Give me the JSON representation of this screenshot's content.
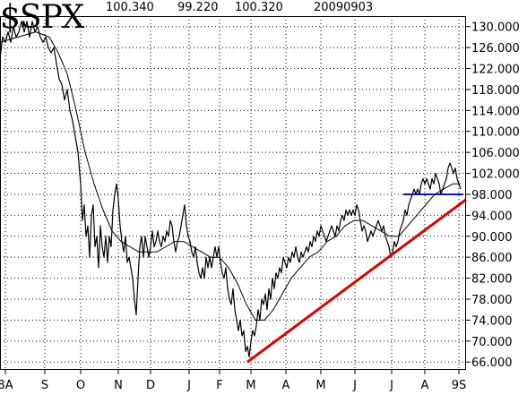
{
  "header": {
    "symbol": "$SPX",
    "v1": "100.340",
    "v2": "99.220",
    "v3": "100.320",
    "date": "20090903"
  },
  "chart_data": {
    "type": "line",
    "title": "$SPX",
    "series": [
      {
        "name": "",
        "color": "#000000",
        "values": [
          [
            0,
            124
          ],
          [
            3,
            128
          ],
          [
            6,
            127
          ],
          [
            9,
            129
          ],
          [
            12,
            127
          ],
          [
            15,
            130
          ],
          [
            18,
            128
          ],
          [
            21,
            129
          ],
          [
            24,
            131
          ],
          [
            27,
            129
          ],
          [
            30,
            131
          ],
          [
            33,
            128
          ],
          [
            36,
            131
          ],
          [
            39,
            129
          ],
          [
            42,
            130
          ],
          [
            45,
            128
          ],
          [
            48,
            127
          ],
          [
            51,
            128
          ],
          [
            54,
            126
          ],
          [
            57,
            125
          ],
          [
            60,
            126
          ],
          [
            63,
            123
          ],
          [
            66,
            120
          ],
          [
            69,
            119
          ],
          [
            72,
            116
          ],
          [
            75,
            118
          ],
          [
            78,
            114
          ],
          [
            81,
            112
          ],
          [
            84,
            109
          ],
          [
            87,
            106
          ],
          [
            90,
            100
          ],
          [
            92,
            93
          ],
          [
            94,
            96
          ],
          [
            96,
            90
          ],
          [
            98,
            92
          ],
          [
            100,
            86
          ],
          [
            102,
            94
          ],
          [
            104,
            96
          ],
          [
            106,
            88
          ],
          [
            108,
            90
          ],
          [
            110,
            84
          ],
          [
            112,
            92
          ],
          [
            114,
            88
          ],
          [
            116,
            86
          ],
          [
            118,
            90
          ],
          [
            120,
            85
          ],
          [
            122,
            90
          ],
          [
            124,
            88
          ],
          [
            126,
            95
          ],
          [
            128,
            98
          ],
          [
            130,
            100
          ],
          [
            132,
            97
          ],
          [
            134,
            92
          ],
          [
            136,
            89
          ],
          [
            138,
            87
          ],
          [
            140,
            90
          ],
          [
            142,
            85
          ],
          [
            144,
            86
          ],
          [
            146,
            84
          ],
          [
            148,
            82
          ],
          [
            150,
            78
          ],
          [
            152,
            75
          ],
          [
            154,
            82
          ],
          [
            156,
            88
          ],
          [
            158,
            90
          ],
          [
            160,
            86
          ],
          [
            162,
            90
          ],
          [
            164,
            88
          ],
          [
            166,
            86
          ],
          [
            168,
            88
          ],
          [
            170,
            91
          ],
          [
            172,
            88
          ],
          [
            174,
            89
          ],
          [
            176,
            91
          ],
          [
            178,
            89
          ],
          [
            180,
            88
          ],
          [
            182,
            90
          ],
          [
            184,
            89
          ],
          [
            186,
            91
          ],
          [
            188,
            90
          ],
          [
            190,
            93
          ],
          [
            192,
            92
          ],
          [
            194,
            89
          ],
          [
            196,
            87
          ],
          [
            198,
            89
          ],
          [
            200,
            90
          ],
          [
            202,
            92
          ],
          [
            204,
            94
          ],
          [
            206,
            96
          ],
          [
            208,
            92
          ],
          [
            210,
            90
          ],
          [
            212,
            89
          ],
          [
            214,
            87
          ],
          [
            216,
            86
          ],
          [
            218,
            88
          ],
          [
            220,
            85
          ],
          [
            222,
            83
          ],
          [
            224,
            82
          ],
          [
            226,
            84
          ],
          [
            228,
            82
          ],
          [
            230,
            86
          ],
          [
            232,
            84
          ],
          [
            234,
            86
          ],
          [
            236,
            84
          ],
          [
            238,
            86
          ],
          [
            240,
            88
          ],
          [
            242,
            86
          ],
          [
            244,
            88
          ],
          [
            246,
            85
          ],
          [
            248,
            83
          ],
          [
            250,
            82
          ],
          [
            252,
            84
          ],
          [
            254,
            80
          ],
          [
            256,
            78
          ],
          [
            258,
            77
          ],
          [
            260,
            80
          ],
          [
            262,
            76
          ],
          [
            264,
            74
          ],
          [
            266,
            72
          ],
          [
            268,
            74
          ],
          [
            270,
            71
          ],
          [
            272,
            72
          ],
          [
            274,
            68
          ],
          [
            276,
            69
          ],
          [
            278,
            67
          ],
          [
            280,
            70
          ],
          [
            282,
            72
          ],
          [
            284,
            71
          ],
          [
            286,
            73
          ],
          [
            288,
            76
          ],
          [
            290,
            74
          ],
          [
            292,
            78
          ],
          [
            294,
            77
          ],
          [
            296,
            79
          ],
          [
            298,
            76
          ],
          [
            300,
            80
          ],
          [
            302,
            78
          ],
          [
            304,
            82
          ],
          [
            306,
            80
          ],
          [
            308,
            83
          ],
          [
            310,
            82
          ],
          [
            312,
            84
          ],
          [
            314,
            83
          ],
          [
            316,
            86
          ],
          [
            318,
            85
          ],
          [
            320,
            84
          ],
          [
            322,
            86
          ],
          [
            324,
            85
          ],
          [
            326,
            87
          ],
          [
            328,
            86
          ],
          [
            330,
            88
          ],
          [
            332,
            86
          ],
          [
            334,
            85
          ],
          [
            336,
            87
          ],
          [
            338,
            86
          ],
          [
            340,
            87
          ],
          [
            342,
            88
          ],
          [
            344,
            87
          ],
          [
            346,
            89
          ],
          [
            348,
            88
          ],
          [
            350,
            90
          ],
          [
            352,
            89
          ],
          [
            354,
            91
          ],
          [
            356,
            90
          ],
          [
            358,
            92
          ],
          [
            360,
            91
          ],
          [
            362,
            90
          ],
          [
            364,
            89
          ],
          [
            366,
            90
          ],
          [
            368,
            91
          ],
          [
            370,
            92
          ],
          [
            372,
            91
          ],
          [
            374,
            90
          ],
          [
            376,
            92
          ],
          [
            378,
            91
          ],
          [
            380,
            93
          ],
          [
            382,
            94
          ],
          [
            384,
            93
          ],
          [
            386,
            95
          ],
          [
            388,
            94
          ],
          [
            390,
            95
          ],
          [
            392,
            94
          ],
          [
            394,
            95
          ],
          [
            396,
            94
          ],
          [
            398,
            96
          ],
          [
            400,
            95
          ],
          [
            402,
            93
          ],
          [
            404,
            91
          ],
          [
            406,
            92
          ],
          [
            408,
            91
          ],
          [
            410,
            89
          ],
          [
            412,
            90
          ],
          [
            414,
            91
          ],
          [
            416,
            90
          ],
          [
            418,
            91
          ],
          [
            420,
            92
          ],
          [
            422,
            93
          ],
          [
            424,
            92
          ],
          [
            426,
            91
          ],
          [
            428,
            92
          ],
          [
            430,
            90
          ],
          [
            432,
            89
          ],
          [
            434,
            88
          ],
          [
            436,
            86
          ],
          [
            438,
            87
          ],
          [
            440,
            89
          ],
          [
            442,
            88
          ],
          [
            444,
            89
          ],
          [
            446,
            91
          ],
          [
            448,
            92
          ],
          [
            450,
            93
          ],
          [
            452,
            95
          ],
          [
            454,
            94
          ],
          [
            456,
            96
          ],
          [
            458,
            97
          ],
          [
            460,
            98
          ],
          [
            462,
            99
          ],
          [
            464,
            98
          ],
          [
            466,
            99
          ],
          [
            468,
            98
          ],
          [
            470,
            100
          ],
          [
            472,
            101
          ],
          [
            474,
            100
          ],
          [
            476,
            101
          ],
          [
            478,
            100
          ],
          [
            480,
            99
          ],
          [
            482,
            101
          ],
          [
            484,
            100
          ],
          [
            486,
            102
          ],
          [
            488,
            101
          ],
          [
            490,
            100
          ],
          [
            492,
            98
          ],
          [
            494,
            99
          ],
          [
            496,
            100
          ],
          [
            498,
            101
          ],
          [
            500,
            103
          ],
          [
            502,
            104
          ],
          [
            504,
            103
          ],
          [
            506,
            102
          ],
          [
            508,
            103
          ],
          [
            510,
            101
          ],
          [
            512,
            100
          ],
          [
            514,
            99
          ]
        ]
      },
      {
        "name": "",
        "color": "#000000",
        "values": [
          [
            0,
            127
          ],
          [
            20,
            128
          ],
          [
            40,
            129
          ],
          [
            55,
            128
          ],
          [
            65,
            125
          ],
          [
            75,
            121
          ],
          [
            85,
            114
          ],
          [
            95,
            106
          ],
          [
            105,
            100
          ],
          [
            115,
            95
          ],
          [
            125,
            91
          ],
          [
            135,
            89
          ],
          [
            145,
            88
          ],
          [
            155,
            87
          ],
          [
            165,
            87
          ],
          [
            175,
            87
          ],
          [
            185,
            88
          ],
          [
            195,
            89
          ],
          [
            205,
            89
          ],
          [
            215,
            88
          ],
          [
            225,
            87
          ],
          [
            235,
            86
          ],
          [
            245,
            86
          ],
          [
            255,
            84
          ],
          [
            265,
            81
          ],
          [
            275,
            77
          ],
          [
            285,
            74
          ],
          [
            295,
            74
          ],
          [
            305,
            76
          ],
          [
            315,
            79
          ],
          [
            325,
            82
          ],
          [
            335,
            84
          ],
          [
            345,
            86
          ],
          [
            355,
            87
          ],
          [
            365,
            89
          ],
          [
            375,
            90
          ],
          [
            385,
            92
          ],
          [
            395,
            93
          ],
          [
            405,
            93
          ],
          [
            415,
            92
          ],
          [
            425,
            91
          ],
          [
            435,
            90
          ],
          [
            445,
            90
          ],
          [
            455,
            92
          ],
          [
            465,
            94
          ],
          [
            475,
            96
          ],
          [
            485,
            98
          ],
          [
            495,
            99
          ],
          [
            505,
            100
          ],
          [
            514,
            100
          ]
        ]
      }
    ],
    "trendlines": [
      {
        "name": "support",
        "color": "#e00000",
        "from": [
          276,
          66
        ],
        "to": [
          520,
          97
        ]
      },
      {
        "name": "resistance",
        "color": "#1010d0",
        "from": [
          450,
          98
        ],
        "to": [
          517,
          98
        ]
      }
    ],
    "x_ticks": [
      {
        "x": 6,
        "label": "8A"
      },
      {
        "x": 50,
        "label": "S"
      },
      {
        "x": 90,
        "label": "O"
      },
      {
        "x": 132,
        "label": "N"
      },
      {
        "x": 168,
        "label": "D"
      },
      {
        "x": 211,
        "label": "J"
      },
      {
        "x": 245,
        "label": "F"
      },
      {
        "x": 280,
        "label": "M"
      },
      {
        "x": 319,
        "label": "A"
      },
      {
        "x": 358,
        "label": "M"
      },
      {
        "x": 396,
        "label": "J"
      },
      {
        "x": 437,
        "label": "J"
      },
      {
        "x": 474,
        "label": "A"
      },
      {
        "x": 512,
        "label": "9S"
      }
    ],
    "y_ticks": [
      66,
      70,
      74,
      78,
      82,
      86,
      90,
      94,
      98,
      102,
      106,
      110,
      114,
      118,
      122,
      126,
      130
    ],
    "y_tick_labels": [
      "66.000",
      "70.000",
      "74.000",
      "78.000",
      "82.000",
      "86.000",
      "90.000",
      "94.000",
      "98.000",
      "102.000",
      "106.000",
      "110.000",
      "114.000",
      "118.000",
      "122.000",
      "126.000",
      "130.000"
    ],
    "ylim": [
      64.5,
      132
    ],
    "xlim": [
      0,
      520
    ],
    "grid": true,
    "grid_style": "dotted"
  }
}
